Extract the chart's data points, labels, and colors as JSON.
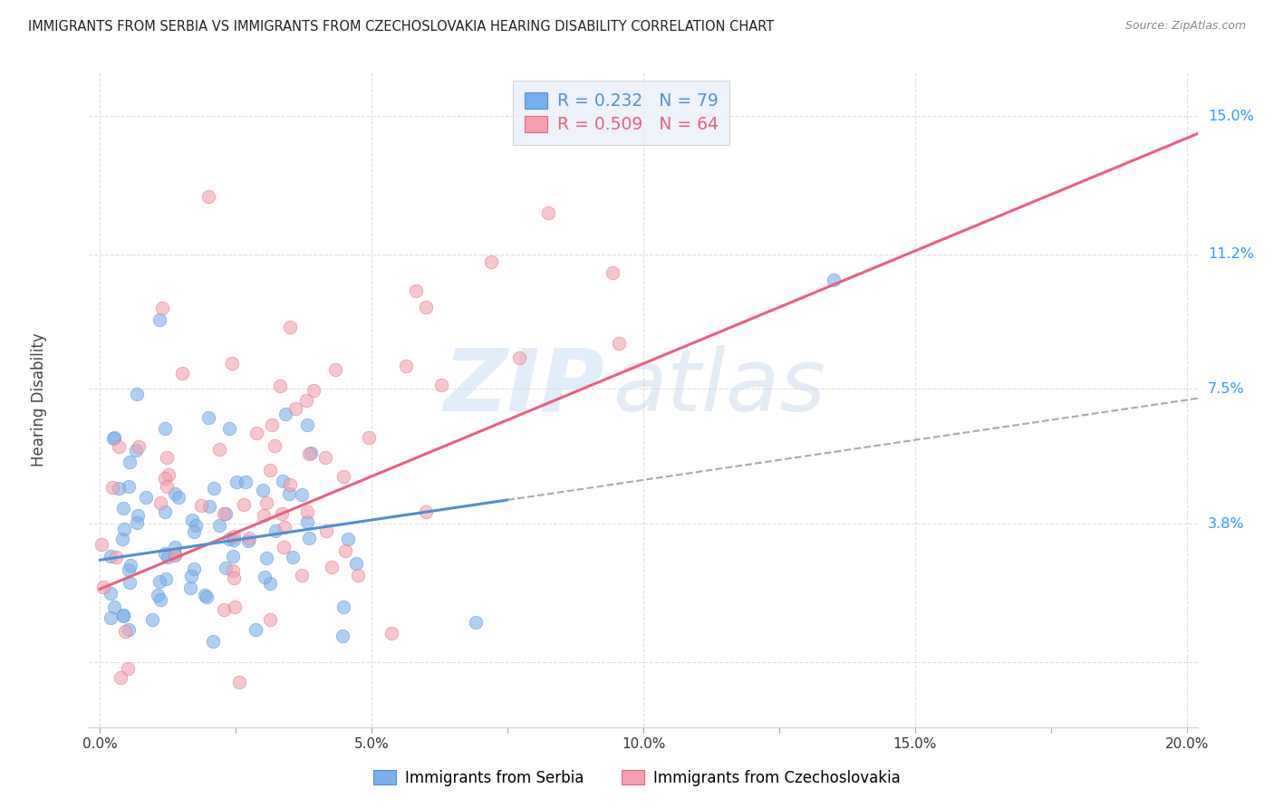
{
  "title": "IMMIGRANTS FROM SERBIA VS IMMIGRANTS FROM CZECHOSLOVAKIA HEARING DISABILITY CORRELATION CHART",
  "source": "Source: ZipAtlas.com",
  "ylabel": "Hearing Disability",
  "yticks": [
    0.0,
    0.038,
    0.075,
    0.112,
    0.15
  ],
  "ytick_labels": [
    "",
    "3.8%",
    "7.5%",
    "11.2%",
    "15.0%"
  ],
  "xticks": [
    0.0,
    0.05,
    0.1,
    0.15,
    0.2
  ],
  "xtick_labels": [
    "0.0%",
    "5.0%",
    "10.0%",
    "15.0%",
    "20.0%"
  ],
  "xlim": [
    -0.002,
    0.202
  ],
  "ylim": [
    -0.018,
    0.162
  ],
  "serbia_color": "#7aafed",
  "czech_color": "#f4a0b0",
  "serbia_line_color": "#5090d0",
  "czech_line_color": "#e86080",
  "serbia_R": 0.232,
  "serbia_N": 79,
  "czech_R": 0.509,
  "czech_N": 64,
  "background_color": "#ffffff",
  "grid_color": "#e0e0e0",
  "serbia_line_intercept": 0.028,
  "serbia_line_slope": 0.22,
  "czech_line_intercept": 0.02,
  "czech_line_slope": 0.62,
  "serbia_line_solid_end": 0.075,
  "serbia_line_dash_start": 0.075
}
